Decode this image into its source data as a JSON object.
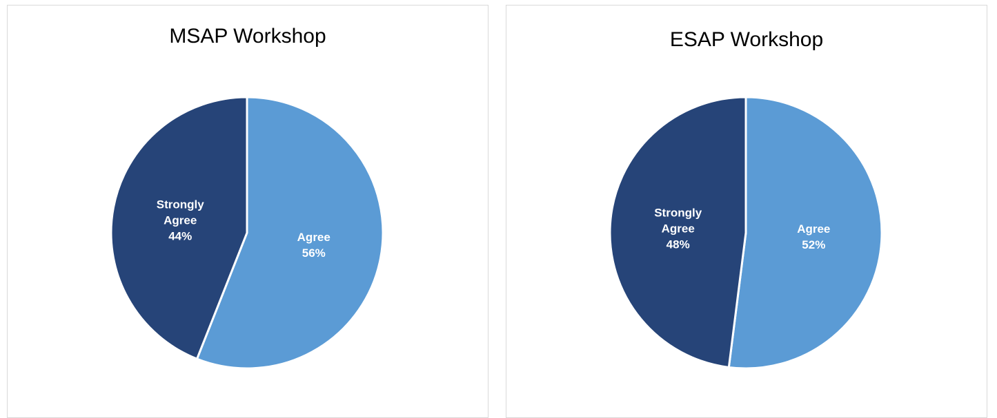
{
  "chart_data": [
    {
      "type": "pie",
      "title": "MSAP Workshop",
      "categories": [
        "Agree",
        "Strongly Agree"
      ],
      "values": [
        56,
        44
      ],
      "value_labels": [
        "56%",
        "44%"
      ],
      "colors": [
        "#5b9bd5",
        "#264478"
      ]
    },
    {
      "type": "pie",
      "title": "ESAP Workshop",
      "categories": [
        "Agree",
        "Strongly Agree"
      ],
      "values": [
        52,
        48
      ],
      "value_labels": [
        "52%",
        "48%"
      ],
      "colors": [
        "#5b9bd5",
        "#264478"
      ]
    }
  ]
}
